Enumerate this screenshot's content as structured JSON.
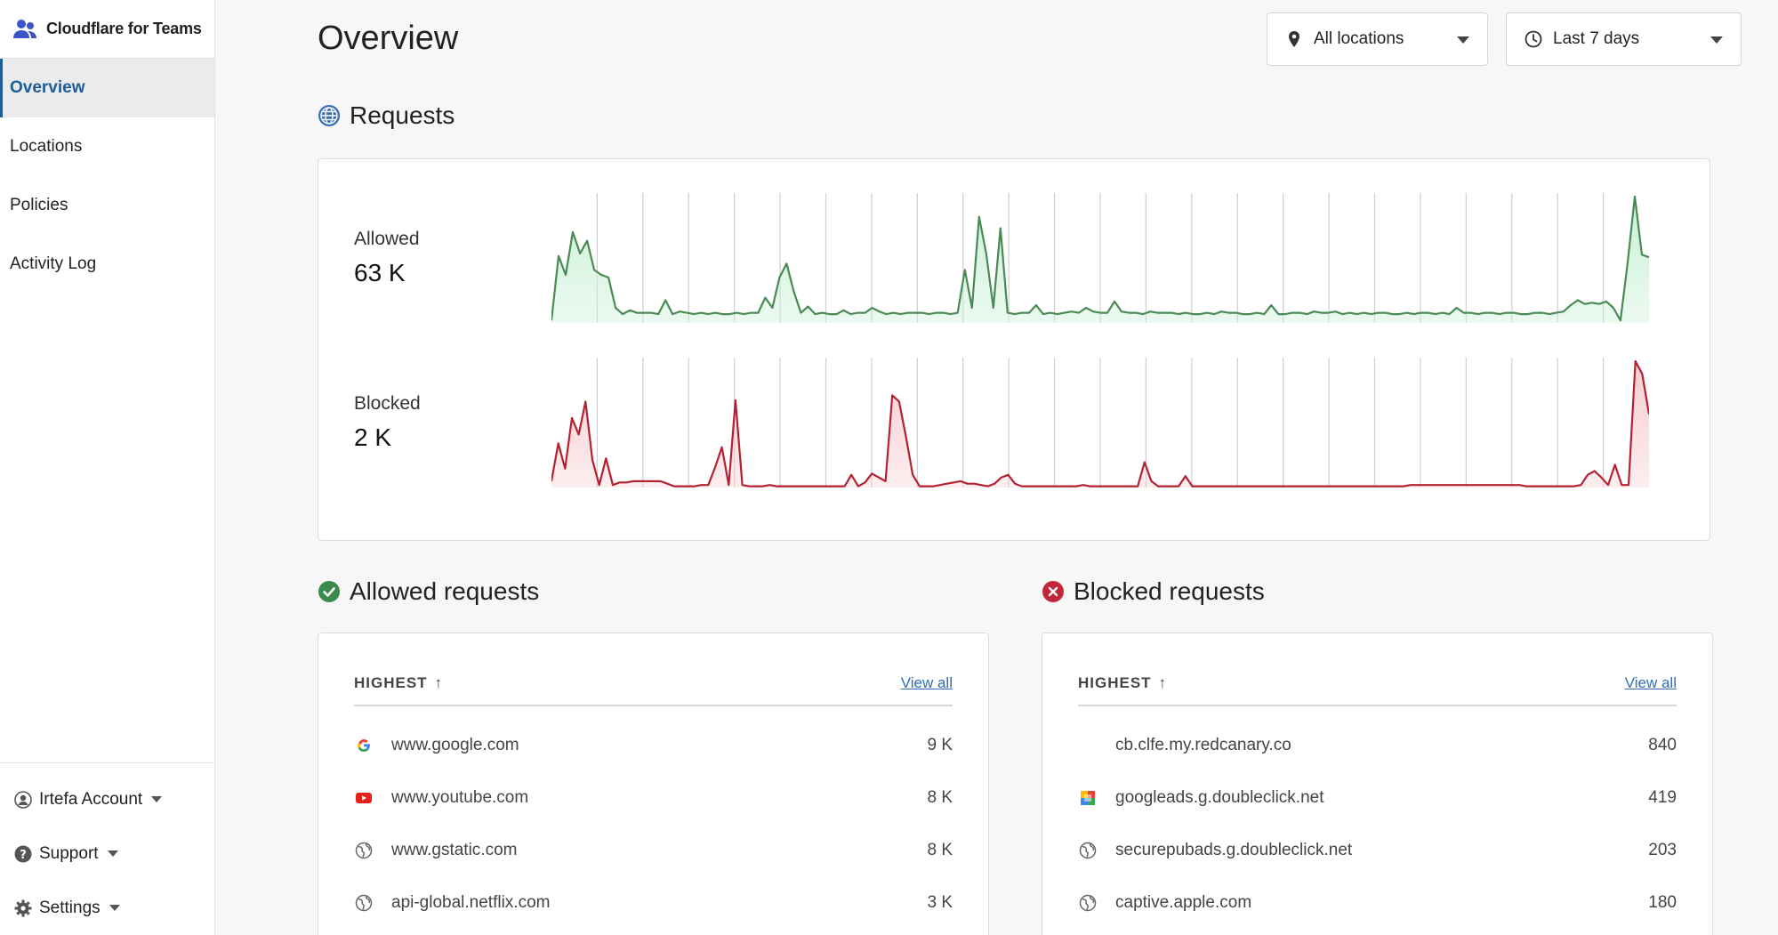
{
  "app": {
    "name": "Cloudflare for Teams"
  },
  "sidebar": {
    "items": [
      {
        "label": "Overview",
        "active": true
      },
      {
        "label": "Locations"
      },
      {
        "label": "Policies"
      },
      {
        "label": "Activity Log"
      }
    ],
    "bottom": [
      {
        "label": "Irtefa Account",
        "icon": "user-icon"
      },
      {
        "label": "Support",
        "icon": "help-icon"
      },
      {
        "label": "Settings",
        "icon": "gear-icon"
      }
    ]
  },
  "header": {
    "title": "Overview",
    "location_filter": "All locations",
    "time_filter": "Last 7 days"
  },
  "requests": {
    "title": "Requests",
    "allowed": {
      "label": "Allowed",
      "value": "63 K",
      "color": "#4a8a55",
      "fill": "#c9f0d6"
    },
    "blocked": {
      "label": "Blocked",
      "value": "2 K",
      "color": "#b22232",
      "fill": "#f6cdd2"
    }
  },
  "chart_data": {
    "type": "area",
    "series": [
      {
        "name": "Allowed",
        "values": [
          2,
          53,
          38,
          72,
          55,
          65,
          42,
          38,
          36,
          12,
          7,
          10,
          8,
          8,
          8,
          7,
          18,
          7,
          9,
          8,
          7,
          8,
          7,
          8,
          7,
          7,
          8,
          7,
          8,
          8,
          20,
          12,
          36,
          47,
          25,
          8,
          13,
          7,
          8,
          7,
          7,
          10,
          7,
          8,
          8,
          12,
          9,
          7,
          8,
          7,
          8,
          8,
          8,
          7,
          8,
          8,
          7,
          8,
          42,
          12,
          84,
          55,
          12,
          75,
          8,
          7,
          8,
          8,
          14,
          7,
          8,
          7,
          8,
          9,
          8,
          12,
          9,
          8,
          8,
          17,
          9,
          8,
          8,
          7,
          9,
          8,
          8,
          8,
          7,
          8,
          7,
          7,
          8,
          7,
          9,
          8,
          8,
          7,
          7,
          8,
          7,
          14,
          7,
          7,
          8,
          8,
          7,
          9,
          8,
          8,
          9,
          7,
          8,
          7,
          8,
          7,
          8,
          8,
          7,
          7,
          8,
          7,
          8,
          8,
          7,
          8,
          7,
          12,
          8,
          8,
          7,
          8,
          8,
          7,
          8,
          8,
          7,
          7,
          8,
          8,
          7,
          8,
          9,
          14,
          18,
          15,
          16,
          15,
          17,
          12,
          2,
          48,
          100,
          54,
          52
        ]
      },
      {
        "name": "Blocked",
        "values": [
          5,
          35,
          15,
          55,
          42,
          68,
          22,
          2,
          23,
          2,
          4,
          4,
          5,
          5,
          5,
          5,
          5,
          3,
          1,
          1,
          1,
          1,
          2,
          2,
          16,
          32,
          2,
          69,
          2,
          1,
          1,
          1,
          2,
          1,
          1,
          1,
          1,
          1,
          1,
          1,
          1,
          1,
          1,
          1,
          10,
          1,
          4,
          11,
          8,
          5,
          73,
          68,
          40,
          10,
          1,
          1,
          1,
          2,
          3,
          4,
          5,
          3,
          3,
          2,
          1,
          3,
          8,
          10,
          3,
          1,
          1,
          1,
          1,
          1,
          1,
          1,
          1,
          1,
          2,
          1,
          1,
          1,
          1,
          1,
          1,
          1,
          1,
          20,
          5,
          1,
          1,
          1,
          1,
          9,
          1,
          1,
          1,
          1,
          1,
          1,
          1,
          1,
          1,
          1,
          1,
          1,
          1,
          1,
          1,
          1,
          1,
          1,
          1,
          1,
          1,
          1,
          1,
          1,
          1,
          1,
          1,
          1,
          1,
          1,
          1,
          1,
          2,
          2,
          2,
          2,
          2,
          2,
          2,
          2,
          2,
          2,
          2,
          2,
          2,
          2,
          2,
          2,
          2,
          1,
          1,
          1,
          1,
          1,
          1,
          1,
          1,
          2,
          10,
          13,
          8,
          2,
          18,
          2,
          2,
          100,
          90,
          58
        ]
      }
    ],
    "gridlines": 24,
    "grid": true
  },
  "allowed_list": {
    "title": "Allowed requests",
    "sort_label": "HIGHEST",
    "view_all": "View all",
    "rows": [
      {
        "domain": "www.google.com",
        "count": "9 K",
        "icon": "google-icon"
      },
      {
        "domain": "www.youtube.com",
        "count": "8 K",
        "icon": "youtube-icon"
      },
      {
        "domain": "www.gstatic.com",
        "count": "8 K",
        "icon": "globe-icon"
      },
      {
        "domain": "api-global.netflix.com",
        "count": "3 K",
        "icon": "globe-icon"
      }
    ]
  },
  "blocked_list": {
    "title": "Blocked requests",
    "sort_label": "HIGHEST",
    "view_all": "View all",
    "rows": [
      {
        "domain": "cb.clfe.my.redcanary.co",
        "count": "840",
        "icon": ""
      },
      {
        "domain": "googleads.g.doubleclick.net",
        "count": "419",
        "icon": "doubleclick-icon"
      },
      {
        "domain": "securepubads.g.doubleclick.net",
        "count": "203",
        "icon": "globe-icon"
      },
      {
        "domain": "captive.apple.com",
        "count": "180",
        "icon": "globe-icon"
      }
    ]
  }
}
